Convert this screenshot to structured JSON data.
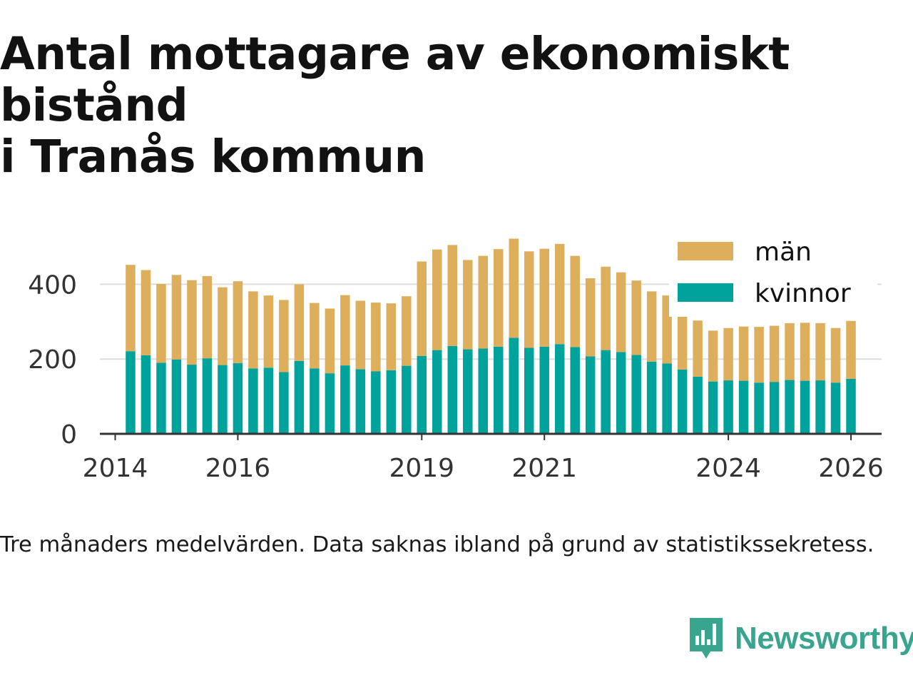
{
  "title_lines": [
    "Antal mottagare av ekonomiskt bistånd",
    "i Tranås kommun"
  ],
  "caption": "Tre månaders medelvärden. Data saknas ibland på grund av statistikssekretess.",
  "brand": {
    "name": "Newsworthy",
    "icon": "newsworthy-logo-icon"
  },
  "colors": {
    "kvinnor": "#00a39b",
    "man": "#ddae5c",
    "grid": "#dddddd",
    "axis": "#333333",
    "brand": "#3aa58f"
  },
  "chart_data": {
    "type": "bar",
    "stacked": true,
    "title": "Antal mottagare av ekonomiskt bistånd i Tranås kommun",
    "xlabel": "",
    "ylabel": "",
    "ylim": [
      0,
      550
    ],
    "xlim": [
      2013.75,
      2026.5
    ],
    "yticks": [
      0,
      200,
      400
    ],
    "xticks": [
      "2014",
      "2016",
      "2019",
      "2021",
      "2024",
      "2026"
    ],
    "grid": true,
    "legend_position": "top-right",
    "x": [
      2014.25,
      2014.5,
      2014.75,
      2015.0,
      2015.25,
      2015.5,
      2015.75,
      2016.0,
      2016.25,
      2016.5,
      2016.75,
      2017.0,
      2017.25,
      2017.5,
      2017.75,
      2018.0,
      2018.25,
      2018.5,
      2018.75,
      2019.0,
      2019.25,
      2019.5,
      2019.75,
      2020.0,
      2020.25,
      2020.5,
      2020.75,
      2021.0,
      2021.25,
      2021.5,
      2021.75,
      2022.0,
      2022.25,
      2022.5,
      2022.75,
      2023.0,
      2023.25,
      2023.5,
      2023.75,
      2024.0,
      2024.25,
      2024.5,
      2024.75,
      2025.0,
      2025.25,
      2025.5,
      2025.75,
      2026.0
    ],
    "series": [
      {
        "name": "kvinnor",
        "values": [
          221,
          210,
          190,
          199,
          185,
          202,
          184,
          189,
          175,
          177,
          165,
          195,
          175,
          162,
          183,
          173,
          167,
          170,
          182,
          208,
          224,
          235,
          226,
          228,
          233,
          257,
          230,
          233,
          240,
          232,
          207,
          224,
          219,
          211,
          193,
          188,
          172,
          153,
          140,
          143,
          142,
          137,
          139,
          144,
          142,
          143,
          137,
          147
        ]
      },
      {
        "name": "män",
        "values": [
          231,
          228,
          211,
          226,
          226,
          220,
          208,
          219,
          206,
          193,
          193,
          205,
          175,
          173,
          188,
          183,
          184,
          179,
          186,
          253,
          269,
          270,
          239,
          248,
          261,
          265,
          258,
          262,
          268,
          244,
          209,
          223,
          213,
          199,
          188,
          182,
          175,
          150,
          136,
          140,
          145,
          149,
          150,
          152,
          155,
          153,
          146,
          155
        ]
      }
    ]
  }
}
